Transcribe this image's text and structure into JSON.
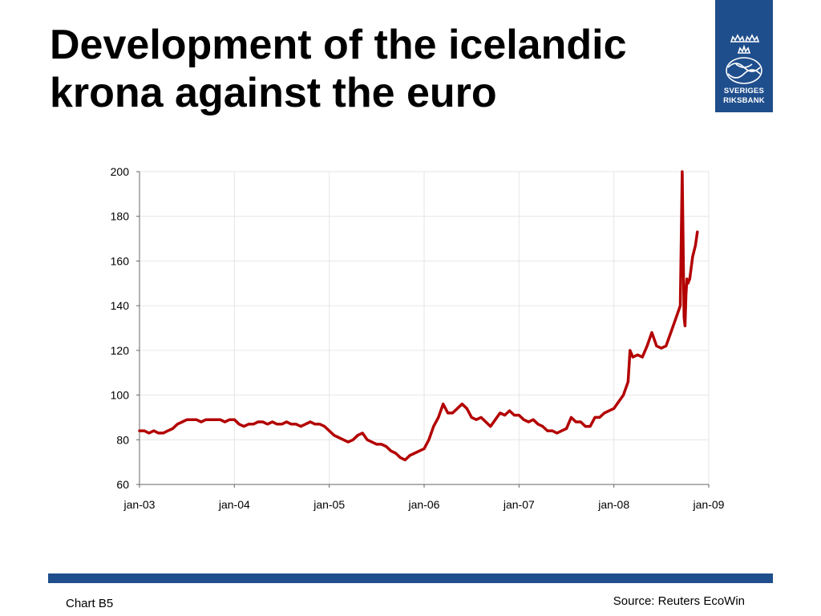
{
  "slide": {
    "title_line1": "Development of the icelandic",
    "title_line2": "krona against the euro",
    "chart_id": "Chart B5",
    "source": "Source: Reuters EcoWin"
  },
  "logo": {
    "line1": "SVERIGES",
    "line2": "RIKSBANK",
    "icon": "crowned-crest-icon",
    "color": "#1f4e8c"
  },
  "colors": {
    "series": "#b30000",
    "footer_bar": "#1f4e8c",
    "grid": "#e6e6e6"
  },
  "chart_data": {
    "type": "line",
    "title": "",
    "xlabel": "",
    "ylabel": "",
    "ylim": [
      60,
      200
    ],
    "yticks": [
      "60",
      "80",
      "100",
      "120",
      "140",
      "160",
      "180",
      "200"
    ],
    "xlim": [
      2003.0,
      2009.0
    ],
    "xticks": [
      "jan-03",
      "jan-04",
      "jan-05",
      "jan-06",
      "jan-07",
      "jan-08",
      "jan-09"
    ],
    "grid": true,
    "legend": "none",
    "series": [
      {
        "x": [
          2003.0,
          2003.05,
          2003.1,
          2003.15,
          2003.2,
          2003.25,
          2003.3,
          2003.35,
          2003.4,
          2003.45,
          2003.5,
          2003.55,
          2003.6,
          2003.65,
          2003.7,
          2003.75,
          2003.8,
          2003.85,
          2003.9,
          2003.95,
          2004.0,
          2004.05,
          2004.1,
          2004.15,
          2004.2,
          2004.25,
          2004.3,
          2004.35,
          2004.4,
          2004.45,
          2004.5,
          2004.55,
          2004.6,
          2004.65,
          2004.7,
          2004.75,
          2004.8,
          2004.85,
          2004.9,
          2004.95,
          2005.0,
          2005.05,
          2005.1,
          2005.15,
          2005.2,
          2005.25,
          2005.3,
          2005.35,
          2005.4,
          2005.45,
          2005.5,
          2005.55,
          2005.6,
          2005.65,
          2005.7,
          2005.75,
          2005.8,
          2005.85,
          2005.9,
          2005.95,
          2006.0,
          2006.05,
          2006.1,
          2006.15,
          2006.2,
          2006.25,
          2006.3,
          2006.35,
          2006.4,
          2006.45,
          2006.5,
          2006.55,
          2006.6,
          2006.65,
          2006.7,
          2006.75,
          2006.8,
          2006.85,
          2006.9,
          2006.95,
          2007.0,
          2007.05,
          2007.1,
          2007.15,
          2007.2,
          2007.25,
          2007.3,
          2007.35,
          2007.4,
          2007.45,
          2007.5,
          2007.55,
          2007.6,
          2007.65,
          2007.7,
          2007.75,
          2007.8,
          2007.85,
          2007.9,
          2007.95,
          2008.0,
          2008.05,
          2008.1,
          2008.15,
          2008.17,
          2008.2,
          2008.25,
          2008.3,
          2008.35,
          2008.4,
          2008.45,
          2008.5,
          2008.55,
          2008.6,
          2008.65,
          2008.7,
          2008.72,
          2008.74,
          2008.75,
          2008.76,
          2008.77,
          2008.78,
          2008.8,
          2008.83,
          2008.86,
          2008.88
        ],
        "y": [
          84,
          84,
          83,
          84,
          83,
          83,
          84,
          85,
          87,
          88,
          89,
          89,
          89,
          88,
          89,
          89,
          89,
          89,
          88,
          89,
          89,
          87,
          86,
          87,
          87,
          88,
          88,
          87,
          88,
          87,
          87,
          88,
          87,
          87,
          86,
          87,
          88,
          87,
          87,
          86,
          84,
          82,
          81,
          80,
          79,
          80,
          82,
          83,
          80,
          79,
          78,
          78,
          77,
          75,
          74,
          72,
          71,
          73,
          74,
          75,
          76,
          80,
          86,
          90,
          96,
          92,
          92,
          94,
          96,
          94,
          90,
          89,
          90,
          88,
          86,
          89,
          92,
          91,
          93,
          91,
          91,
          89,
          88,
          89,
          87,
          86,
          84,
          84,
          83,
          84,
          85,
          90,
          88,
          88,
          86,
          86,
          90,
          90,
          92,
          93,
          94,
          97,
          100,
          106,
          120,
          117,
          118,
          117,
          122,
          128,
          122,
          121,
          122,
          128,
          134,
          140,
          200,
          135,
          131,
          145,
          152,
          150,
          152,
          162,
          167,
          173
        ]
      }
    ]
  }
}
